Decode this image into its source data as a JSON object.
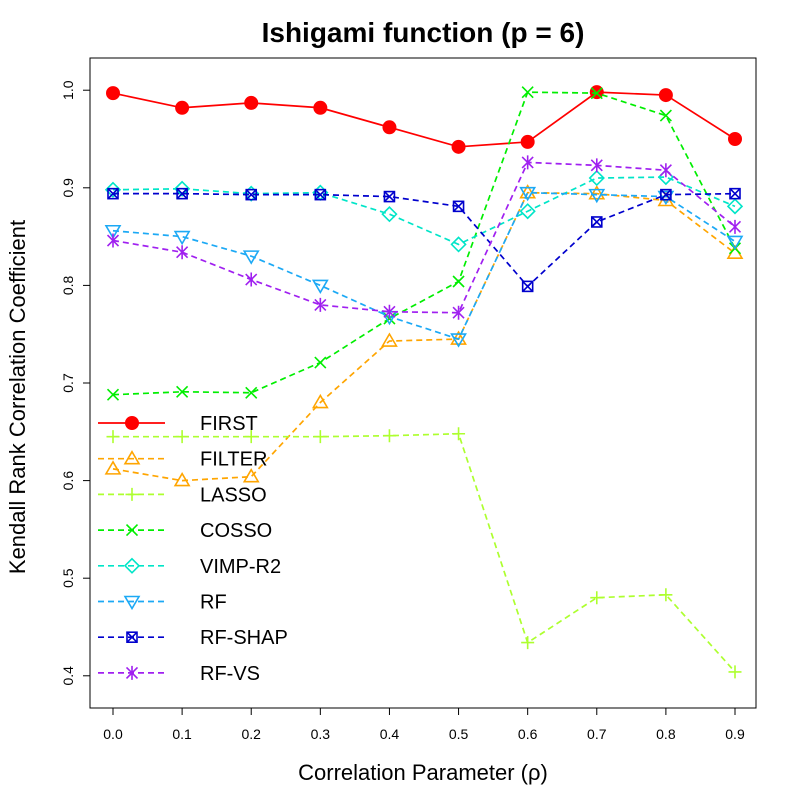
{
  "chart_data": {
    "type": "line",
    "title": "Ishigami function (p = 6)",
    "xlabel": "Correlation Parameter (ρ)",
    "ylabel": "Kendall Rank Correlation Coefficient",
    "x": [
      0.0,
      0.1,
      0.2,
      0.3,
      0.4,
      0.5,
      0.6,
      0.7,
      0.8,
      0.9
    ],
    "x_tick_labels": [
      "0.0",
      "0.1",
      "0.2",
      "0.3",
      "0.4",
      "0.5",
      "0.6",
      "0.7",
      "0.8",
      "0.9"
    ],
    "y_ticks": [
      0.4,
      0.5,
      0.6,
      0.7,
      0.8,
      0.9,
      1.0
    ],
    "y_tick_labels": [
      "0.4",
      "0.5",
      "0.6",
      "0.7",
      "0.8",
      "0.9",
      "1.0"
    ],
    "xlim": [
      -0.027,
      0.927
    ],
    "ylim": [
      0.367,
      1.033
    ],
    "grid": false,
    "legend_position": "left",
    "series": [
      {
        "name": "FIRST",
        "color": "#ff0000",
        "marker": "filled-circle",
        "dashed": false,
        "values": [
          0.997,
          0.982,
          0.987,
          0.982,
          0.962,
          0.942,
          0.947,
          0.998,
          0.995,
          0.95
        ]
      },
      {
        "name": "FILTER",
        "color": "#ffa500",
        "marker": "triangle-up",
        "dashed": true,
        "values": [
          0.612,
          0.6,
          0.604,
          0.68,
          0.743,
          0.745,
          0.895,
          0.894,
          0.887,
          0.833
        ]
      },
      {
        "name": "LASSO",
        "color": "#adff2f",
        "marker": "plus",
        "dashed": true,
        "values": [
          0.645,
          0.645,
          0.645,
          0.645,
          0.646,
          0.648,
          0.434,
          0.48,
          0.483,
          0.404
        ]
      },
      {
        "name": "COSSO",
        "color": "#00ee00",
        "marker": "cross",
        "dashed": true,
        "values": [
          0.688,
          0.691,
          0.69,
          0.721,
          0.766,
          0.804,
          0.998,
          0.997,
          0.974,
          0.838
        ]
      },
      {
        "name": "VIMP-R2",
        "color": "#00e5c8",
        "marker": "diamond",
        "dashed": true,
        "values": [
          0.898,
          0.899,
          0.894,
          0.895,
          0.873,
          0.842,
          0.876,
          0.91,
          0.911,
          0.881
        ]
      },
      {
        "name": "RF",
        "color": "#1ca9f5",
        "marker": "triangle-down",
        "dashed": true,
        "values": [
          0.856,
          0.85,
          0.83,
          0.8,
          0.768,
          0.745,
          0.895,
          0.893,
          0.891,
          0.845
        ]
      },
      {
        "name": "RF-SHAP",
        "color": "#0000cd",
        "marker": "box-x",
        "dashed": true,
        "values": [
          0.894,
          0.894,
          0.893,
          0.893,
          0.891,
          0.881,
          0.799,
          0.865,
          0.893,
          0.894
        ]
      },
      {
        "name": "RF-VS",
        "color": "#a020f0",
        "marker": "asterisk",
        "dashed": true,
        "values": [
          0.846,
          0.834,
          0.806,
          0.78,
          0.773,
          0.772,
          0.926,
          0.923,
          0.918,
          0.86
        ]
      }
    ]
  }
}
